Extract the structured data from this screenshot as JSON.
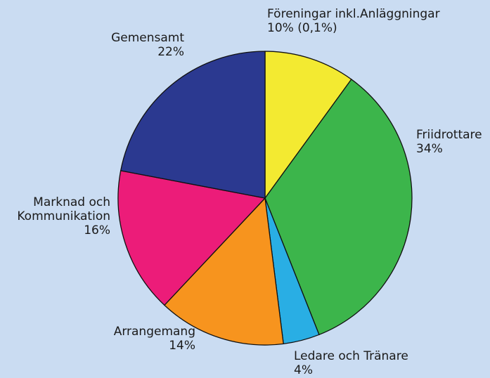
{
  "chart_data": {
    "type": "pie",
    "categories": [
      "Föreningar inkl.Anläggningar",
      "Friidrottare",
      "Ledare och Tränare",
      "Arrangemang",
      "Marknad och Kommunikation",
      "Gemensamt"
    ],
    "values": [
      10,
      34,
      4,
      14,
      16,
      22
    ],
    "value_labels": [
      "10% (0,1%)",
      "34%",
      "4%",
      "14%",
      "16%",
      "22%"
    ],
    "colors": [
      "#f3ea31",
      "#3cb54b",
      "#29aee4",
      "#f7941e",
      "#ec1c79",
      "#2b3990"
    ]
  }
}
